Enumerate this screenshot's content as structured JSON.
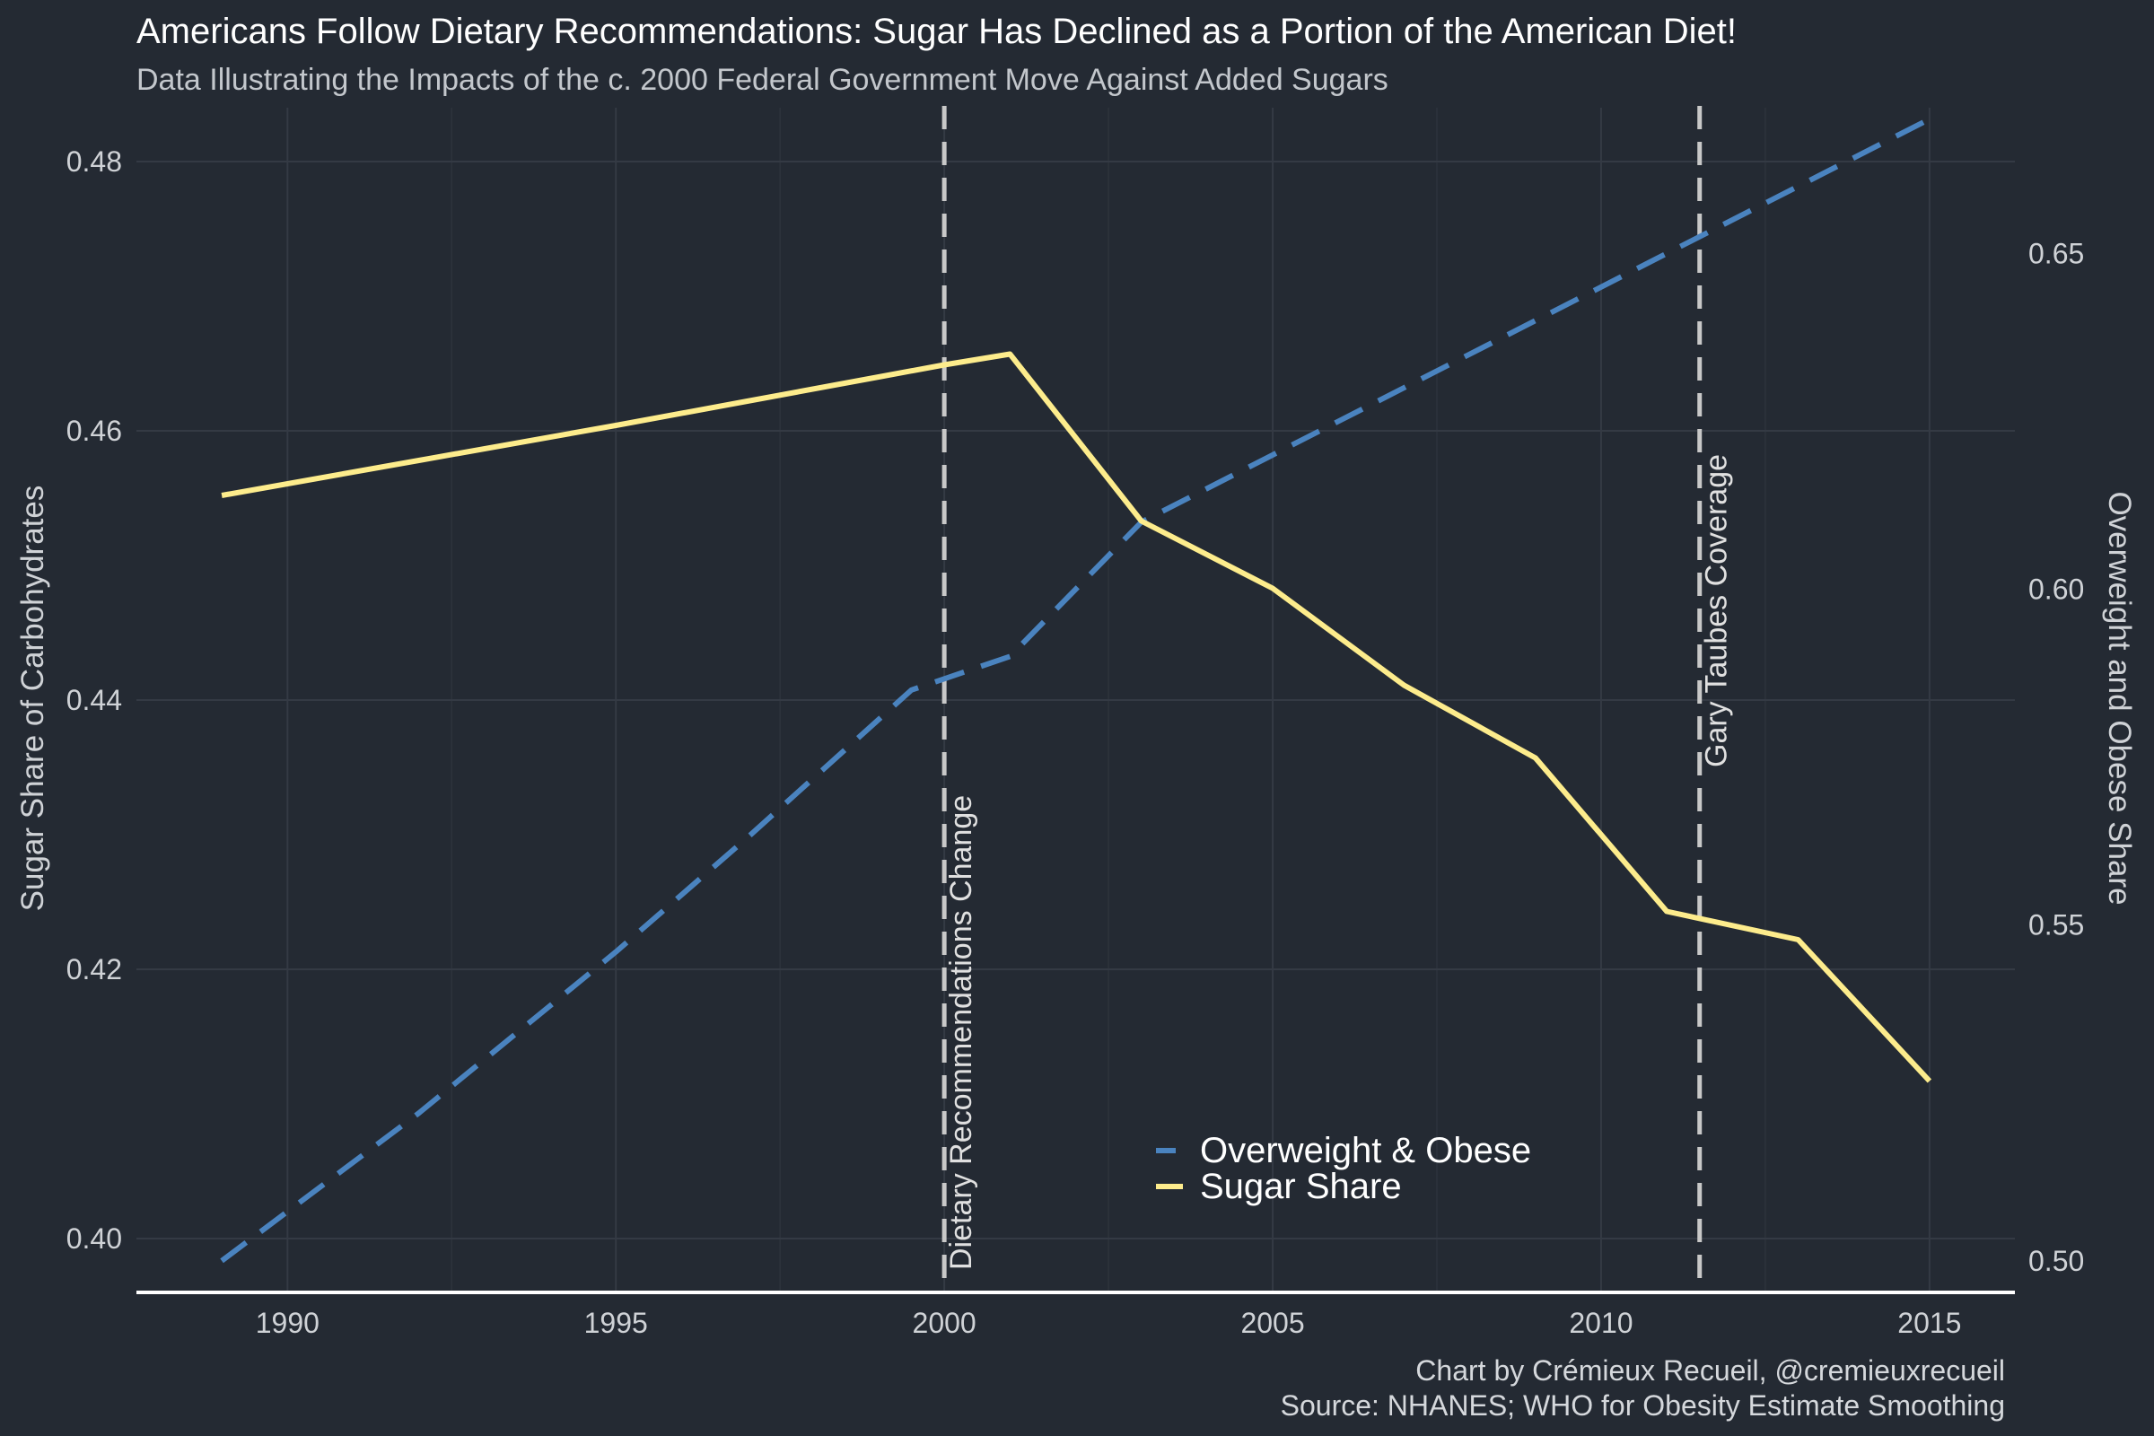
{
  "chart_data": {
    "type": "line",
    "title": "Americans Follow Dietary Recommendations: Sugar Has Declined as a Portion of the American Diet!",
    "subtitle": "Data Illustrating the Impacts of the c. 2000 Federal Government Move Against Added Sugars",
    "xlabel": "",
    "ylabel_left": "Sugar Share of Carbohydrates",
    "ylabel_right": "Overweight and Obese Share",
    "xlim": [
      1987.7,
      2016.3
    ],
    "ylim_left": [
      0.396,
      0.484
    ],
    "ylim_right": [
      0.4953,
      0.6717
    ],
    "x_ticks": [
      1990,
      1995,
      2000,
      2005,
      2010,
      2015
    ],
    "y_left_ticks": [
      0.4,
      0.42,
      0.44,
      0.46,
      0.48
    ],
    "y_right_ticks": [
      0.5,
      0.55,
      0.6,
      0.65
    ],
    "series": [
      {
        "name": "Overweight & Obese",
        "axis": "right",
        "color": "#4a83bf",
        "style": "dashed",
        "x": [
          1989,
          1992,
          1995,
          1997,
          1999.5,
          2001,
          2003,
          2005,
          2007,
          2009,
          2011,
          2013,
          2015
        ],
        "values": [
          0.5,
          0.522,
          0.546,
          0.563,
          0.585,
          0.59,
          0.61,
          0.62,
          0.63,
          0.64,
          0.65,
          0.66,
          0.67
        ]
      },
      {
        "name": "Sugar Share",
        "axis": "left",
        "color": "#fdec8c",
        "style": "solid",
        "x": [
          1989,
          1992,
          1995,
          1997,
          1999,
          2000,
          2001,
          2003,
          2005,
          2007,
          2009,
          2011,
          2013,
          2015
        ],
        "values": [
          0.4552,
          0.4578,
          0.4604,
          0.4622,
          0.464,
          0.4649,
          0.4657,
          0.4533,
          0.4483,
          0.4411,
          0.4357,
          0.4243,
          0.4222,
          0.4117
        ]
      }
    ],
    "annotations": [
      {
        "label": "Dietary Recommendations Change",
        "x": 2000
      },
      {
        "label": "Gary Taubes Coverage",
        "x": 2011.5
      }
    ],
    "legend_position": "bottom-center",
    "grid": true
  },
  "caption": {
    "line1": "Chart by Crémieux Recueil, @cremieuxrecueil",
    "line2": "Source: NHANES; WHO for Obesity Estimate Smoothing"
  },
  "colors": {
    "background": "#242a33",
    "grid": "#343a44",
    "annotation_line": "#c8c8c8",
    "axis_line": "#ffffff"
  }
}
